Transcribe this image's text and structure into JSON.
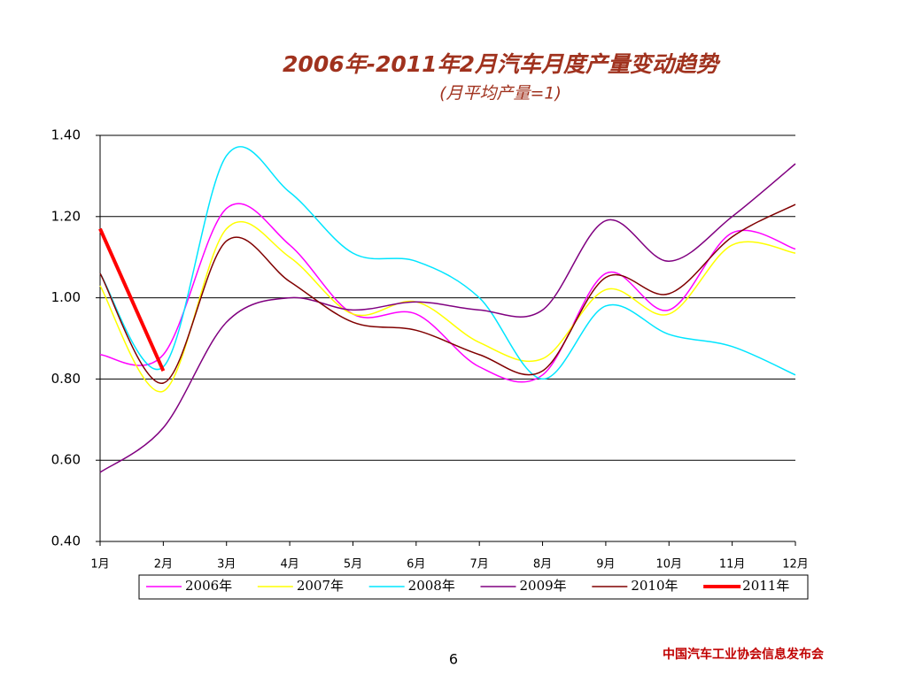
{
  "chart_data": {
    "type": "line",
    "title": "2006年-2011年2月汽车月度产量变动趋势",
    "subtitle": "(月平均产量=1)",
    "categories": [
      "1月",
      "2月",
      "3月",
      "4月",
      "5月",
      "6月",
      "7月",
      "8月",
      "9月",
      "10月",
      "11月",
      "12月"
    ],
    "series": [
      {
        "name": "2006年",
        "color": "#ff00ff",
        "values": [
          0.86,
          0.86,
          1.22,
          1.13,
          0.96,
          0.96,
          0.83,
          0.81,
          1.06,
          0.97,
          1.16,
          1.12
        ]
      },
      {
        "name": "2007年",
        "color": "#ffff00",
        "values": [
          1.03,
          0.77,
          1.17,
          1.1,
          0.96,
          0.99,
          0.89,
          0.85,
          1.02,
          0.96,
          1.13,
          1.11
        ]
      },
      {
        "name": "2008年",
        "color": "#00e5ff",
        "values": [
          1.06,
          0.83,
          1.35,
          1.26,
          1.11,
          1.09,
          1.0,
          0.8,
          0.98,
          0.91,
          0.88,
          0.81
        ]
      },
      {
        "name": "2009年",
        "color": "#800080",
        "values": [
          0.57,
          0.68,
          0.94,
          1.0,
          0.97,
          0.99,
          0.97,
          0.97,
          1.19,
          1.09,
          1.2,
          1.33
        ]
      },
      {
        "name": "2010年",
        "color": "#800000",
        "values": [
          1.06,
          0.79,
          1.14,
          1.04,
          0.94,
          0.92,
          0.86,
          0.82,
          1.05,
          1.01,
          1.15,
          1.23
        ]
      },
      {
        "name": "2011年",
        "color": "#ff0000",
        "values": [
          1.17,
          0.82,
          null,
          null,
          null,
          null,
          null,
          null,
          null,
          null,
          null,
          null
        ]
      }
    ],
    "ylim": [
      0.4,
      1.4
    ],
    "yticks": [
      {
        "value": 0.4,
        "label": "0.40"
      },
      {
        "value": 0.6,
        "label": "0.60"
      },
      {
        "value": 0.8,
        "label": "0.80"
      },
      {
        "value": 1.0,
        "label": "1.00"
      },
      {
        "value": 1.2,
        "label": "1.20"
      },
      {
        "value": 1.4,
        "label": "1.40"
      }
    ],
    "grid": true,
    "legend": "bottom"
  },
  "footer": {
    "page": "6",
    "org": "中国汽车工业协会信息发布会"
  }
}
